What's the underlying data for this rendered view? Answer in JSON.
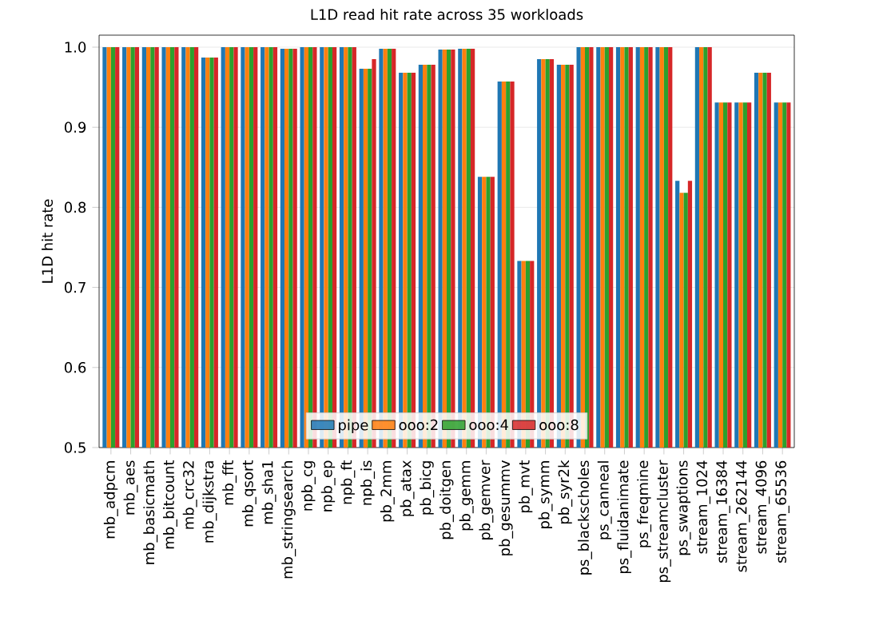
{
  "chart_data": {
    "type": "bar",
    "title": "L1D read hit rate across 35 workloads",
    "ylabel": "L1D hit rate",
    "categories": [
      "mb_adpcm",
      "mb_aes",
      "mb_basicmath",
      "mb_bitcount",
      "mb_crc32",
      "mb_dijkstra",
      "mb_fft",
      "mb_qsort",
      "mb_sha1",
      "mb_stringsearch",
      "npb_cg",
      "npb_ep",
      "npb_ft",
      "npb_is",
      "pb_2mm",
      "pb_atax",
      "pb_bicg",
      "pb_doitgen",
      "pb_gemm",
      "pb_gemver",
      "pb_gesummv",
      "pb_mvt",
      "pb_symm",
      "pb_syr2k",
      "ps_blackscholes",
      "ps_canneal",
      "ps_fluidanimate",
      "ps_freqmine",
      "ps_streamcluster",
      "ps_swaptions",
      "stream_1024",
      "stream_16384",
      "stream_262144",
      "stream_4096",
      "stream_65536"
    ],
    "series": [
      {
        "name": "pipe",
        "color": "#1f77b4",
        "values": [
          1.0,
          1.0,
          1.0,
          1.0,
          1.0,
          0.987,
          1.0,
          1.0,
          1.0,
          0.998,
          1.0,
          1.0,
          1.0,
          0.973,
          0.998,
          0.968,
          0.978,
          0.997,
          0.998,
          0.838,
          0.957,
          0.733,
          0.985,
          0.978,
          1.0,
          1.0,
          1.0,
          1.0,
          1.0,
          0.833,
          1.0,
          0.931,
          0.931,
          0.968,
          0.931
        ]
      },
      {
        "name": "ooo:2",
        "color": "#ff7f0e",
        "values": [
          1.0,
          1.0,
          1.0,
          1.0,
          1.0,
          0.987,
          1.0,
          1.0,
          1.0,
          0.998,
          1.0,
          1.0,
          1.0,
          0.973,
          0.998,
          0.968,
          0.978,
          0.997,
          0.998,
          0.838,
          0.957,
          0.733,
          0.985,
          0.978,
          1.0,
          1.0,
          1.0,
          1.0,
          1.0,
          0.818,
          1.0,
          0.931,
          0.931,
          0.968,
          0.931
        ]
      },
      {
        "name": "ooo:4",
        "color": "#2ca02c",
        "values": [
          1.0,
          1.0,
          1.0,
          1.0,
          1.0,
          0.987,
          1.0,
          1.0,
          1.0,
          0.998,
          1.0,
          1.0,
          1.0,
          0.973,
          0.998,
          0.968,
          0.978,
          0.997,
          0.998,
          0.838,
          0.957,
          0.733,
          0.985,
          0.978,
          1.0,
          1.0,
          1.0,
          1.0,
          1.0,
          0.818,
          1.0,
          0.931,
          0.931,
          0.968,
          0.931
        ]
      },
      {
        "name": "ooo:8",
        "color": "#d62728",
        "values": [
          1.0,
          1.0,
          1.0,
          1.0,
          1.0,
          0.987,
          1.0,
          1.0,
          1.0,
          0.998,
          1.0,
          1.0,
          1.0,
          0.985,
          0.998,
          0.968,
          0.978,
          0.997,
          0.998,
          0.838,
          0.957,
          0.733,
          0.985,
          0.978,
          1.0,
          1.0,
          1.0,
          1.0,
          1.0,
          0.833,
          1.0,
          0.931,
          0.931,
          0.968,
          0.931
        ]
      }
    ],
    "ylim": [
      0.5,
      1.015
    ],
    "yticks": [
      0.5,
      0.6,
      0.7,
      0.8,
      0.9,
      {
        "value": 1.0,
        "label": "1.0"
      }
    ],
    "grid": "y",
    "legend": "bottom"
  }
}
